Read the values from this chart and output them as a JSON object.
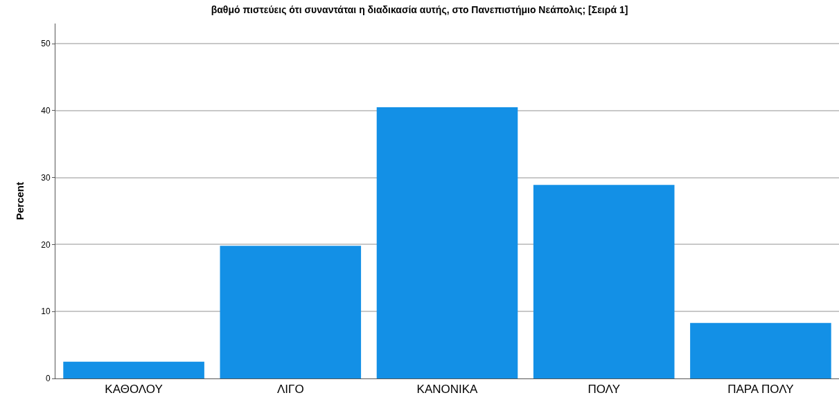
{
  "chart_data": {
    "type": "bar",
    "title": "βαθμό πιστεύεις ότι συναντάται η διαδικασία αυτής, στο Πανεπιστήμιο Νεάπολις; [Σειρά 1]",
    "ylabel": "Percent",
    "categories": [
      "ΚΑΘΟΛΟΥ",
      "ΛΙΓΟ",
      "ΚΑΝΟΝΙΚΑ",
      "ΠΟΛΥ",
      "ΠΑΡΑ ΠΟΛΥ"
    ],
    "values": [
      2.5,
      19.8,
      40.5,
      28.9,
      8.3
    ],
    "color": "#1390e6",
    "ylim": [
      0,
      53
    ],
    "yticks": [
      0,
      10,
      20,
      30,
      40,
      50
    ],
    "grid": "y"
  }
}
